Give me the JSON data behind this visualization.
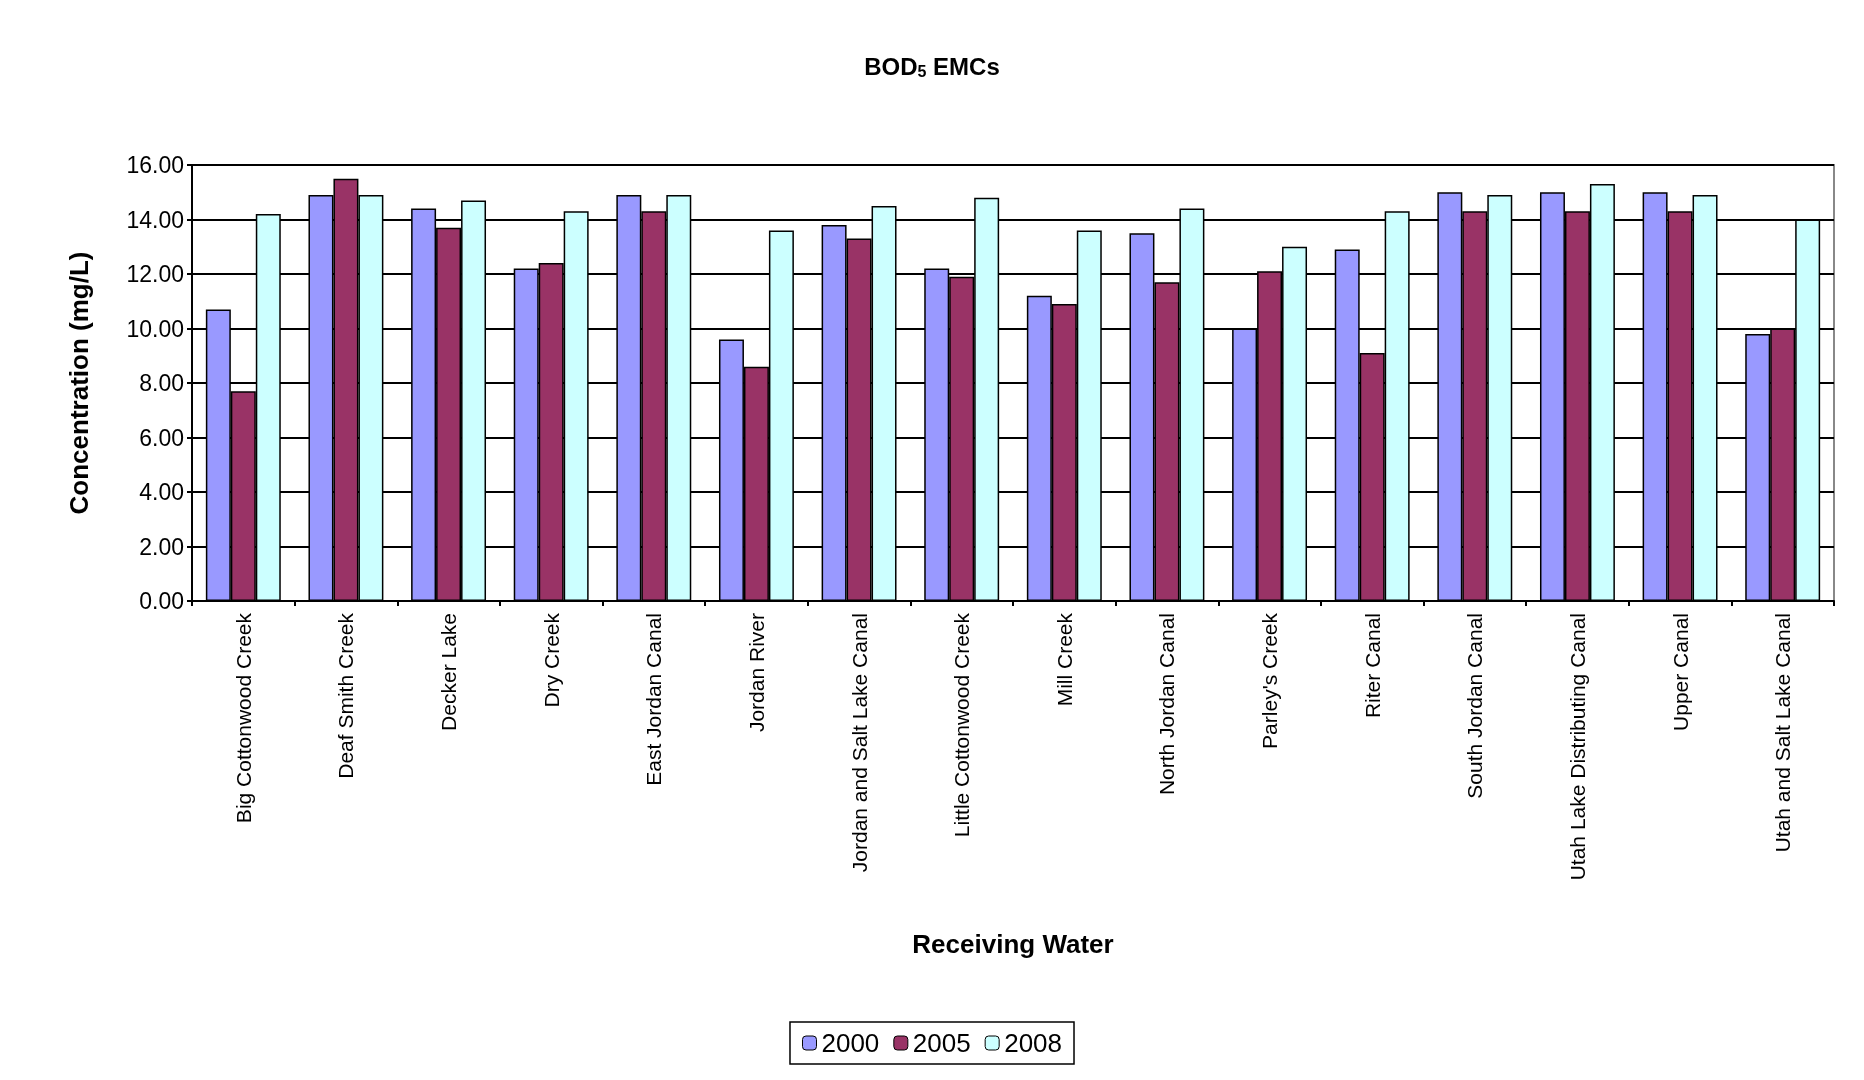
{
  "chart_data": {
    "type": "bar",
    "title": "BOD$_{5}$ EMCs",
    "xlabel": "Receiving Water",
    "ylabel": "Concentration (mg/L)",
    "categories": [
      "Big Cottonwood Creek",
      "Deaf Smith Creek",
      "Decker Lake",
      "Dry Creek",
      "East Jordan Canal",
      "Jordan River",
      "Jordan and Salt Lake Canal",
      "Little Cottonwood Creek",
      "Mill Creek",
      "North Jordan Canal",
      "Parley's Creek",
      "Riter Canal",
      "South Jordan Canal",
      "Utah Lake Distributing Canal",
      "Upper Canal",
      "Utah and Salt Lake Canal"
    ],
    "series": [
      {
        "name": "2000",
        "color": "#9999ff",
        "values": [
          10.7,
          14.9,
          14.4,
          12.2,
          14.9,
          9.6,
          13.8,
          12.2,
          11.2,
          13.5,
          10.0,
          12.9,
          15.0,
          15.0,
          15.0,
          9.8
        ]
      },
      {
        "name": "2005",
        "color": "#993366",
        "values": [
          7.7,
          15.5,
          13.7,
          12.4,
          14.3,
          8.6,
          13.3,
          11.9,
          10.9,
          11.7,
          12.1,
          9.1,
          14.3,
          14.3,
          14.3,
          10.0
        ]
      },
      {
        "name": "2008",
        "color": "#ccffff",
        "values": [
          14.2,
          14.9,
          14.7,
          14.3,
          14.9,
          13.6,
          14.5,
          14.8,
          13.6,
          14.4,
          13.0,
          14.3,
          14.9,
          15.3,
          14.9,
          14.0
        ]
      }
    ],
    "ylim": [
      0,
      16
    ],
    "yticks": [
      {
        "value": 0,
        "label": "0.00"
      },
      {
        "value": 2,
        "label": "2.00"
      },
      {
        "value": 4,
        "label": "4.00"
      },
      {
        "value": 6,
        "label": "6.00"
      },
      {
        "value": 8,
        "label": "8.00"
      },
      {
        "value": 10,
        "label": "10.00"
      },
      {
        "value": 12,
        "label": "12.00"
      },
      {
        "value": 14,
        "label": "14.00"
      },
      {
        "value": 16,
        "label": "16.00"
      }
    ],
    "grid": "y",
    "legend": "bottom"
  }
}
